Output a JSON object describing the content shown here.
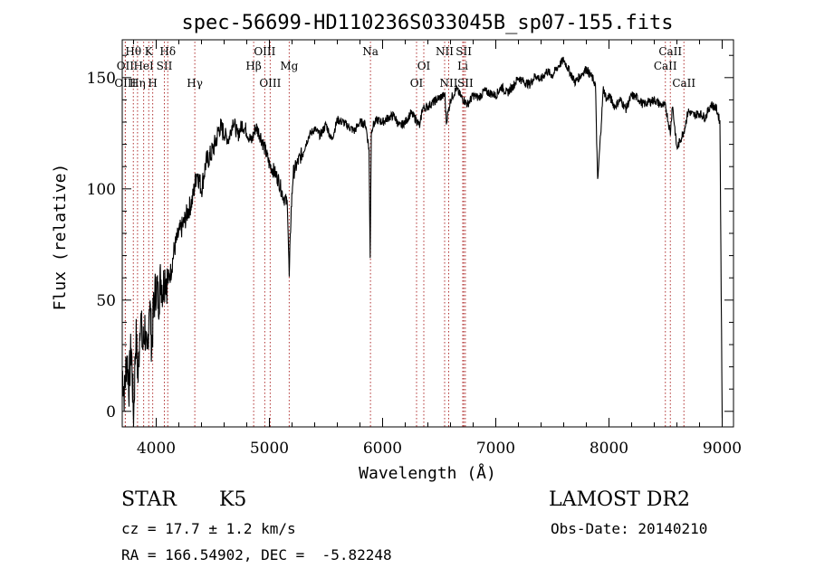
{
  "chart_data": {
    "type": "line",
    "title": "spec-56699-HD110236S033045B_sp07-155.fits",
    "xlabel": "Wavelength (Å)",
    "ylabel": "Flux (relative)",
    "xlim": [
      3700,
      9100
    ],
    "ylim": [
      -7,
      167
    ],
    "x_ticks": [
      4000,
      5000,
      6000,
      7000,
      8000,
      9000
    ],
    "y_ticks": [
      0,
      50,
      100,
      150
    ],
    "x_tick_labels": [
      "4000",
      "5000",
      "6000",
      "7000",
      "8000",
      "9000"
    ],
    "y_tick_labels": [
      "0",
      "50",
      "100",
      "150"
    ],
    "grid": false,
    "legend": "none",
    "line_color": "#000000",
    "marker_color": "#b03030",
    "series": [
      {
        "x": [
          3700,
          3720,
          3740,
          3760,
          3780,
          3800,
          3820,
          3840,
          3860,
          3880,
          3900,
          3920,
          3940,
          3960,
          3980,
          4000,
          4020,
          4040,
          4060,
          4080,
          4100,
          4130,
          4160,
          4200,
          4240,
          4280,
          4320,
          4360,
          4400,
          4440,
          4480,
          4520,
          4560,
          4600,
          4640,
          4680,
          4720,
          4760,
          4800,
          4840,
          4880,
          4920,
          4960,
          5000,
          5040,
          5080,
          5120,
          5160,
          5175,
          5190,
          5210,
          5260,
          5300,
          5350,
          5400,
          5450,
          5500,
          5550,
          5600,
          5650,
          5700,
          5750,
          5800,
          5850,
          5880,
          5890,
          5900,
          5910,
          5950,
          6000,
          6050,
          6100,
          6150,
          6200,
          6250,
          6300,
          6330,
          6350,
          6400,
          6450,
          6500,
          6550,
          6563,
          6600,
          6650,
          6700,
          6750,
          6800,
          6850,
          6900,
          6950,
          7000,
          7050,
          7100,
          7150,
          7200,
          7250,
          7300,
          7350,
          7400,
          7450,
          7500,
          7550,
          7600,
          7650,
          7700,
          7750,
          7800,
          7850,
          7880,
          7900,
          7950,
          7980,
          8000,
          8050,
          8100,
          8150,
          8200,
          8250,
          8300,
          8350,
          8400,
          8450,
          8500,
          8542,
          8560,
          8600,
          8662,
          8700,
          8750,
          8800,
          8850,
          8900,
          8950,
          8980,
          9000
        ],
        "y": [
          18,
          8,
          25,
          12,
          30,
          -3,
          35,
          15,
          45,
          28,
          38,
          20,
          52,
          30,
          48,
          57,
          50,
          60,
          55,
          62,
          58,
          63,
          73,
          80,
          84,
          90,
          95,
          108,
          100,
          112,
          115,
          120,
          128,
          125,
          122,
          131,
          124,
          129,
          126,
          121,
          128,
          124,
          118,
          111,
          108,
          104,
          97,
          93,
          60,
          88,
          107,
          113,
          117,
          124,
          127,
          124,
          129,
          122,
          131,
          130,
          128,
          126,
          130,
          129,
          118,
          70,
          125,
          128,
          131,
          130,
          132,
          133,
          128,
          130,
          134,
          131,
          128,
          136,
          137,
          139,
          141,
          142,
          130,
          140,
          145,
          141,
          138,
          142,
          141,
          144,
          143,
          142,
          146,
          143,
          146,
          150,
          148,
          147,
          151,
          149,
          153,
          151,
          155,
          158,
          153,
          148,
          151,
          154,
          150,
          147,
          103,
          145,
          140,
          142,
          137,
          140,
          136,
          142,
          141,
          138,
          139,
          140,
          138,
          137,
          125,
          138,
          118,
          126,
          135,
          133,
          134,
          132,
          138,
          136,
          130,
          -3
        ]
      }
    ],
    "lines": [
      {
        "label": "Hθ",
        "x": 3798,
        "row": 0
      },
      {
        "label": "K",
        "x": 3934,
        "row": 0
      },
      {
        "label": "Hδ",
        "x": 4102,
        "row": 0
      },
      {
        "label": "OII",
        "x": 3727,
        "row": 1
      },
      {
        "label": "HeI",
        "x": 3889,
        "row": 1
      },
      {
        "label": "SII",
        "x": 4072,
        "row": 1
      },
      {
        "label": "OIII",
        "x": 3727,
        "row": 2
      },
      {
        "label": "Hη",
        "x": 3835,
        "row": 2
      },
      {
        "label": "H",
        "x": 3969,
        "row": 2
      },
      {
        "label": "Hγ",
        "x": 4341,
        "row": 2
      },
      {
        "label": "OIII",
        "x": 4959,
        "row": 0
      },
      {
        "label": "Hβ",
        "x": 4861,
        "row": 1
      },
      {
        "label": "Mg",
        "x": 5175,
        "row": 1
      },
      {
        "label": "OIII",
        "x": 5007,
        "row": 2
      },
      {
        "label": "Na",
        "x": 5893,
        "row": 0
      },
      {
        "label": "OI",
        "x": 6364,
        "row": 1
      },
      {
        "label": "OI",
        "x": 6300,
        "row": 2
      },
      {
        "label": "NII",
        "x": 6548,
        "row": 0
      },
      {
        "label": "SII",
        "x": 6717,
        "row": 0
      },
      {
        "label": "Li",
        "x": 6708,
        "row": 1
      },
      {
        "label": "NII",
        "x": 6584,
        "row": 2
      },
      {
        "label": "SII",
        "x": 6731,
        "row": 2
      },
      {
        "label": "CaII",
        "x": 8542,
        "row": 0
      },
      {
        "label": "CaII",
        "x": 8498,
        "row": 1
      },
      {
        "label": "CaII",
        "x": 8662,
        "row": 2
      }
    ]
  },
  "info": {
    "class_label": "STAR",
    "subclass": "K5",
    "survey": "LAMOST DR2",
    "redshift": "cz = 17.7 ± 1.2 km/s",
    "obs_date": "Obs-Date: 20140210",
    "coords": "RA = 166.54902, DEC =  -5.82248"
  }
}
